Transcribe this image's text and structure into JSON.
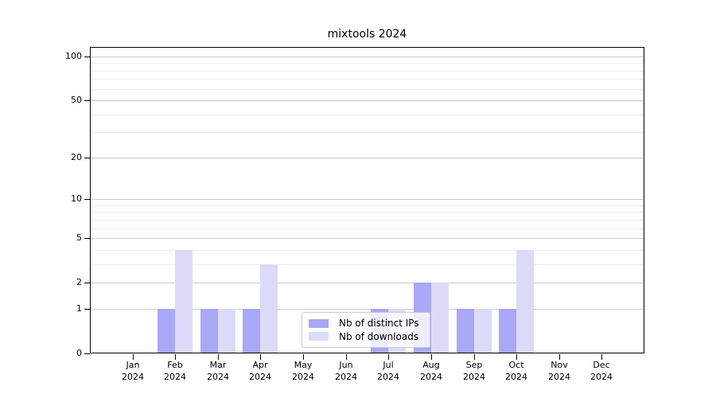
{
  "chart_data": {
    "type": "bar",
    "title": "mixtools 2024",
    "xlabel": "",
    "ylabel": "",
    "yscale": "log1p",
    "ylim": [
      0,
      116
    ],
    "y_ticks": [
      0,
      1,
      2,
      5,
      10,
      20,
      50,
      100
    ],
    "y_minor_gridlines": [
      3,
      4,
      6,
      7,
      8,
      9,
      30,
      40,
      60,
      70,
      80,
      90
    ],
    "grid": "on",
    "categories": [
      "Jan",
      "Feb",
      "Mar",
      "Apr",
      "May",
      "Jun",
      "Jul",
      "Aug",
      "Sep",
      "Oct",
      "Nov",
      "Dec"
    ],
    "category_year": "2024",
    "series": [
      {
        "name": "Nb of distinct IPs",
        "color": "#a8a8f6",
        "values": [
          0,
          1,
          1,
          1,
          0,
          0,
          1,
          2,
          1,
          1,
          0,
          0
        ]
      },
      {
        "name": "Nb of downloads",
        "color": "#dbdbf9",
        "values": [
          0,
          4,
          1,
          3,
          0,
          0,
          1,
          2,
          1,
          4,
          0,
          0
        ]
      }
    ],
    "legend": {
      "position": "lower-center"
    },
    "colors": {
      "major_grid": "#c9c9c9",
      "minor_grid": "#ececec",
      "spine": "#000000",
      "title_text": "#000000"
    }
  }
}
